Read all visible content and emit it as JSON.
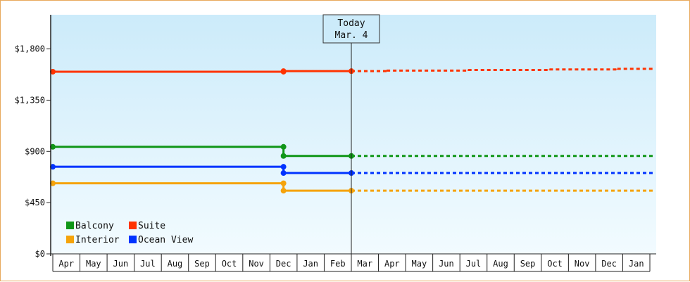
{
  "chart_data": {
    "type": "line",
    "title": "",
    "xlabel": "",
    "ylabel": "",
    "ylim": [
      0,
      2100
    ],
    "y_ticks": [
      {
        "value": 0,
        "label": "$0"
      },
      {
        "value": 450,
        "label": "$450"
      },
      {
        "value": 900,
        "label": "$900"
      },
      {
        "value": 1350,
        "label": "$1,350"
      },
      {
        "value": 1800,
        "label": "$1,800"
      }
    ],
    "x_labels": [
      "Apr",
      "May",
      "Jun",
      "Jul",
      "Aug",
      "Sep",
      "Oct",
      "Nov",
      "Dec",
      "Jan",
      "Feb",
      "Mar",
      "Apr",
      "May",
      "Jun",
      "Jul",
      "Aug",
      "Sep",
      "Oct",
      "Nov",
      "Dec",
      "Jan"
    ],
    "today_marker": {
      "line1": "Today",
      "line2": "Mar. 4",
      "month_index": 11
    },
    "legend": {
      "position": "bottom-left"
    },
    "series": [
      {
        "name": "Balcony",
        "color": "#109618",
        "history": [
          {
            "from": 0,
            "to": 8.5,
            "value": 940
          },
          {
            "from": 8.5,
            "to": 11,
            "value": 860
          }
        ],
        "forecast": [
          {
            "from": 11,
            "to": 22.2,
            "value": 860
          }
        ]
      },
      {
        "name": "Suite",
        "color": "#ff3300",
        "history": [
          {
            "from": 0,
            "to": 8.5,
            "value": 1600
          },
          {
            "from": 8.5,
            "to": 11,
            "value": 1605
          }
        ],
        "forecast": [
          {
            "from": 11,
            "to": 12.3,
            "value": 1605
          },
          {
            "from": 12.3,
            "to": 15.3,
            "value": 1610
          },
          {
            "from": 15.3,
            "to": 18.3,
            "value": 1615
          },
          {
            "from": 18.3,
            "to": 20.8,
            "value": 1620
          },
          {
            "from": 20.8,
            "to": 22.2,
            "value": 1625
          }
        ]
      },
      {
        "name": "Interior",
        "color": "#f5a30b",
        "history": [
          {
            "from": 0,
            "to": 8.5,
            "value": 620
          },
          {
            "from": 8.5,
            "to": 11,
            "value": 555
          }
        ],
        "forecast": [
          {
            "from": 11,
            "to": 22.2,
            "value": 555
          }
        ]
      },
      {
        "name": "Ocean View",
        "color": "#0033ff",
        "history": [
          {
            "from": 0,
            "to": 8.5,
            "value": 765
          },
          {
            "from": 8.5,
            "to": 11,
            "value": 710
          }
        ],
        "forecast": [
          {
            "from": 11,
            "to": 22.2,
            "value": 710
          }
        ]
      }
    ]
  }
}
